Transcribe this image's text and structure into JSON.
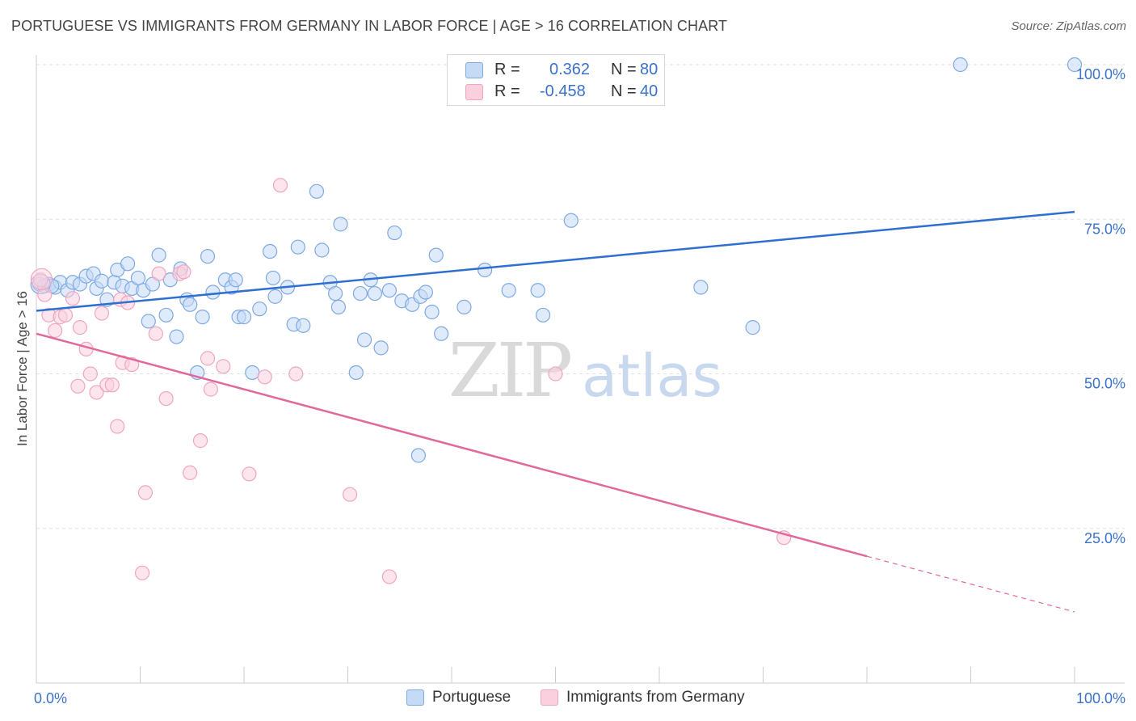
{
  "header": {
    "title": "PORTUGUESE VS IMMIGRANTS FROM GERMANY IN LABOR FORCE | AGE > 16 CORRELATION CHART",
    "source": "Source: ZipAtlas.com"
  },
  "watermark": {
    "part1": "ZIP",
    "part2": "atlas"
  },
  "legend_top": {
    "rows": [
      {
        "r_label": "R =",
        "r_value": "0.362",
        "n_label": "N =",
        "n_value": "80"
      },
      {
        "r_label": "R =",
        "r_value": "-0.458",
        "n_label": "N =",
        "n_value": "40"
      }
    ]
  },
  "chart_data": {
    "type": "scatter",
    "title": "PORTUGUESE VS IMMIGRANTS FROM GERMANY IN LABOR FORCE | AGE > 16 CORRELATION CHART",
    "xlabel": "",
    "ylabel": "In Labor Force | Age > 16",
    "xlim": [
      0,
      100
    ],
    "ylim": [
      0,
      100
    ],
    "x_tick_labels": [
      "0.0%",
      "100.0%"
    ],
    "y_tick_labels": [
      {
        "value": 100,
        "label": "100.0%"
      },
      {
        "value": 75,
        "label": "75.0%"
      },
      {
        "value": 50,
        "label": "50.0%"
      },
      {
        "value": 25,
        "label": "25.0%"
      }
    ],
    "grid": true,
    "legend_placement": "bottom",
    "series": [
      {
        "name": "Portuguese",
        "color": "#7ea9e3",
        "line_color": "#2f6fd0",
        "trend": {
          "x": [
            0,
            100
          ],
          "y": [
            60.2,
            76.2
          ],
          "dashed_from": null
        },
        "points": [
          [
            0.3,
            64.5
          ],
          [
            0.8,
            64.2
          ],
          [
            1.2,
            64.5
          ],
          [
            1.8,
            64.0
          ],
          [
            2.3,
            64.8
          ],
          [
            3.0,
            63.5
          ],
          [
            3.5,
            64.8
          ],
          [
            4.2,
            64.5
          ],
          [
            4.8,
            65.8
          ],
          [
            5.5,
            66.2
          ],
          [
            5.8,
            63.8
          ],
          [
            6.3,
            65.0
          ],
          [
            6.8,
            62.0
          ],
          [
            7.5,
            64.8
          ],
          [
            7.8,
            66.8
          ],
          [
            8.3,
            64.2
          ],
          [
            8.8,
            67.8
          ],
          [
            9.2,
            63.8
          ],
          [
            9.8,
            65.5
          ],
          [
            10.3,
            63.5
          ],
          [
            10.8,
            58.5
          ],
          [
            11.2,
            64.5
          ],
          [
            11.8,
            69.2
          ],
          [
            12.5,
            59.5
          ],
          [
            12.9,
            65.2
          ],
          [
            13.5,
            56.0
          ],
          [
            13.9,
            67.0
          ],
          [
            14.5,
            62.0
          ],
          [
            14.8,
            61.2
          ],
          [
            15.5,
            50.2
          ],
          [
            16.0,
            59.2
          ],
          [
            16.5,
            69.0
          ],
          [
            17.0,
            63.2
          ],
          [
            18.2,
            65.2
          ],
          [
            18.8,
            64.0
          ],
          [
            19.2,
            65.2
          ],
          [
            19.5,
            59.2
          ],
          [
            20.0,
            59.2
          ],
          [
            20.8,
            50.2
          ],
          [
            21.5,
            60.5
          ],
          [
            22.5,
            69.8
          ],
          [
            22.8,
            65.5
          ],
          [
            23.0,
            62.5
          ],
          [
            24.2,
            64.0
          ],
          [
            24.8,
            58.0
          ],
          [
            25.2,
            70.5
          ],
          [
            25.7,
            57.8
          ],
          [
            27.0,
            79.5
          ],
          [
            27.5,
            70.0
          ],
          [
            28.3,
            64.8
          ],
          [
            28.8,
            63.0
          ],
          [
            29.1,
            60.8
          ],
          [
            29.3,
            74.2
          ],
          [
            30.8,
            50.2
          ],
          [
            31.2,
            63.0
          ],
          [
            31.6,
            55.5
          ],
          [
            32.2,
            65.2
          ],
          [
            32.6,
            63.0
          ],
          [
            33.2,
            54.2
          ],
          [
            34.0,
            63.5
          ],
          [
            34.5,
            72.8
          ],
          [
            35.2,
            61.8
          ],
          [
            36.2,
            61.2
          ],
          [
            36.8,
            36.8
          ],
          [
            37.0,
            62.5
          ],
          [
            37.5,
            63.2
          ],
          [
            38.1,
            60.0
          ],
          [
            38.5,
            69.2
          ],
          [
            39.0,
            56.5
          ],
          [
            41.2,
            60.8
          ],
          [
            43.2,
            66.8
          ],
          [
            45.5,
            63.5
          ],
          [
            48.3,
            63.5
          ],
          [
            48.8,
            59.5
          ],
          [
            51.5,
            74.8
          ],
          [
            64.0,
            64.0
          ],
          [
            69.0,
            57.5
          ],
          [
            89.0,
            100.0
          ],
          [
            100.0,
            100.0
          ],
          [
            1.5,
            64.2
          ]
        ]
      },
      {
        "name": "Immigrants from Germany",
        "color": "#f0a6bf",
        "line_color": "#e0689a",
        "trend": {
          "x": [
            0,
            100
          ],
          "y": [
            56.5,
            11.5
          ],
          "dashed_from": 80.0
        },
        "points": [
          [
            0.4,
            65.2
          ],
          [
            0.8,
            62.8
          ],
          [
            1.2,
            59.5
          ],
          [
            1.8,
            57.0
          ],
          [
            2.3,
            59.2
          ],
          [
            2.8,
            59.5
          ],
          [
            3.5,
            62.2
          ],
          [
            4.0,
            48.0
          ],
          [
            4.2,
            57.5
          ],
          [
            4.8,
            54.0
          ],
          [
            5.2,
            50.0
          ],
          [
            5.8,
            47.0
          ],
          [
            6.3,
            59.8
          ],
          [
            6.8,
            48.2
          ],
          [
            7.3,
            48.2
          ],
          [
            7.8,
            41.5
          ],
          [
            8.1,
            62.0
          ],
          [
            8.3,
            51.8
          ],
          [
            8.8,
            61.5
          ],
          [
            9.2,
            51.5
          ],
          [
            10.2,
            17.8
          ],
          [
            10.5,
            30.8
          ],
          [
            11.5,
            56.5
          ],
          [
            11.8,
            66.2
          ],
          [
            12.5,
            46.0
          ],
          [
            13.8,
            66.2
          ],
          [
            14.2,
            66.5
          ],
          [
            15.8,
            39.2
          ],
          [
            14.8,
            34.0
          ],
          [
            16.5,
            52.5
          ],
          [
            16.8,
            47.5
          ],
          [
            18.0,
            51.2
          ],
          [
            20.5,
            33.8
          ],
          [
            22.0,
            49.5
          ],
          [
            23.5,
            80.5
          ],
          [
            25.0,
            50.0
          ],
          [
            30.2,
            30.5
          ],
          [
            34.0,
            17.2
          ],
          [
            50.0,
            50.0
          ],
          [
            72.0,
            23.5
          ]
        ]
      }
    ]
  }
}
